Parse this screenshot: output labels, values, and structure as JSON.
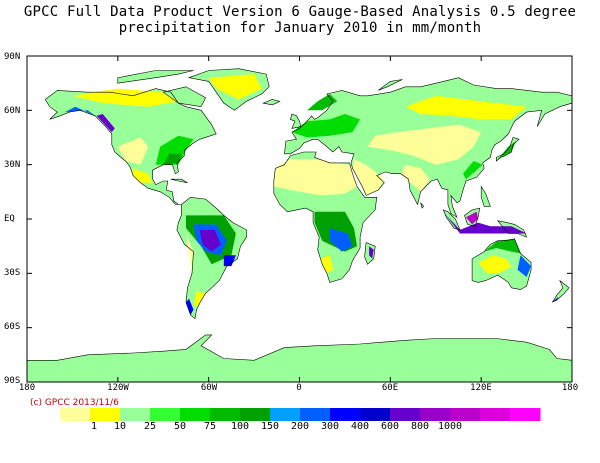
{
  "title_line1": "GPCC Full Data Product Version 6 Gauge-Based Analysis 0.5 degree",
  "title_line2": "precipitation for January  2010 in mm/month",
  "credit": "(c) GPCC 2013/11/6",
  "lat_labels": [
    "90N",
    "60N",
    "30N",
    "EQ",
    "30S",
    "60S",
    "90S"
  ],
  "lon_labels": [
    "180",
    "120W",
    "60W",
    "0",
    "60E",
    "120E",
    "180"
  ],
  "legend": {
    "colors": [
      "#ffff99",
      "#ffff00",
      "#99ff99",
      "#33ff33",
      "#00dd00",
      "#00bb00",
      "#00a000",
      "#00a0ff",
      "#0060ff",
      "#0000ff",
      "#0000cc",
      "#6600cc",
      "#9900cc",
      "#bb00cc",
      "#dd00dd",
      "#ff00ff"
    ],
    "labels": [
      "1",
      "10",
      "25",
      "50",
      "75",
      "100",
      "150",
      "200",
      "300",
      "400",
      "600",
      "800",
      "1000"
    ]
  },
  "map": {
    "lat_range": [
      -90,
      90
    ],
    "lon_range": [
      -180,
      180
    ],
    "ocean_color": "#ffffff",
    "coastline_color": "#000000"
  }
}
